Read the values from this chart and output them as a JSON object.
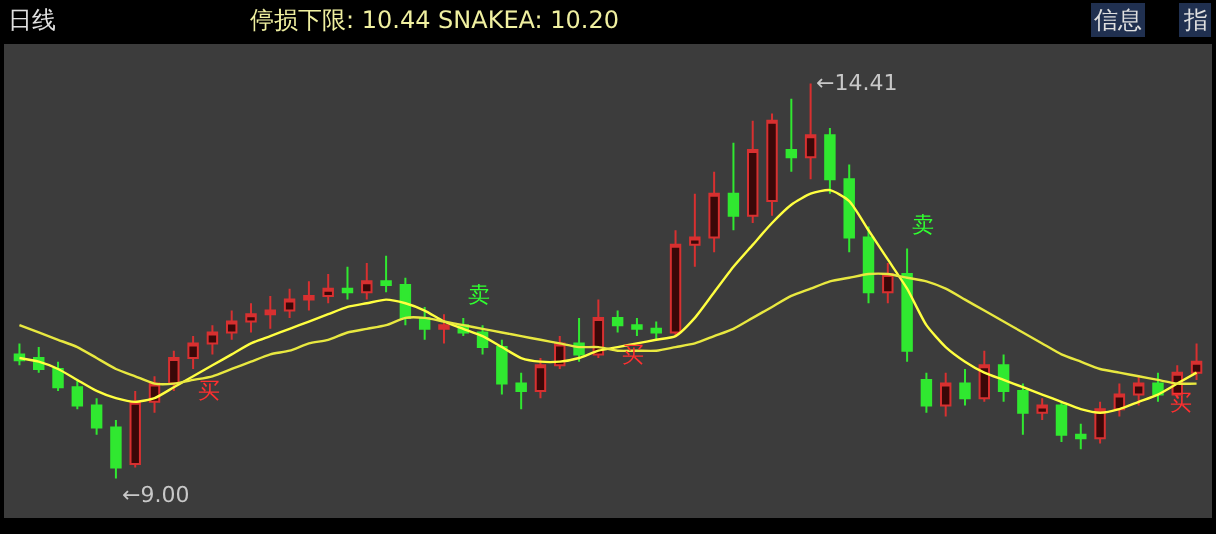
{
  "chart_data": {
    "type": "candlestick",
    "title": "日线",
    "subtitle": "停损下限: 10.44 SNAKEA: 10.20",
    "categories": [
      null,
      null,
      null,
      null,
      null,
      null,
      null,
      null,
      null,
      null,
      null,
      null,
      null,
      null,
      null,
      null,
      null,
      null,
      null,
      null,
      null,
      null,
      null,
      null,
      null,
      null,
      null,
      null,
      null,
      null,
      null,
      null,
      null,
      null,
      null,
      null,
      null,
      null,
      null,
      null,
      null,
      null,
      null,
      null,
      null,
      null,
      null,
      null,
      null,
      null,
      null,
      null,
      null,
      null,
      null,
      null,
      null,
      null,
      null,
      null,
      null,
      null
    ],
    "ohlc": [
      [
        10.7,
        10.85,
        10.55,
        10.62
      ],
      [
        10.65,
        10.8,
        10.45,
        10.5
      ],
      [
        10.5,
        10.6,
        10.2,
        10.25
      ],
      [
        10.25,
        10.35,
        9.95,
        10.0
      ],
      [
        10.0,
        10.1,
        9.6,
        9.7
      ],
      [
        9.7,
        9.8,
        9.0,
        9.15
      ],
      [
        9.2,
        10.2,
        9.15,
        10.05
      ],
      [
        10.05,
        10.4,
        9.9,
        10.3
      ],
      [
        10.3,
        10.75,
        10.2,
        10.65
      ],
      [
        10.65,
        10.95,
        10.5,
        10.85
      ],
      [
        10.85,
        11.1,
        10.7,
        11.0
      ],
      [
        11.0,
        11.3,
        10.9,
        11.15
      ],
      [
        11.15,
        11.4,
        11.0,
        11.25
      ],
      [
        11.25,
        11.5,
        11.05,
        11.3
      ],
      [
        11.3,
        11.6,
        11.2,
        11.45
      ],
      [
        11.45,
        11.7,
        11.3,
        11.5
      ],
      [
        11.5,
        11.8,
        11.4,
        11.6
      ],
      [
        11.6,
        11.9,
        11.45,
        11.55
      ],
      [
        11.55,
        11.95,
        11.45,
        11.7
      ],
      [
        11.7,
        12.05,
        11.55,
        11.65
      ],
      [
        11.65,
        11.75,
        11.1,
        11.2
      ],
      [
        11.2,
        11.35,
        10.9,
        11.05
      ],
      [
        11.05,
        11.25,
        10.85,
        11.1
      ],
      [
        11.1,
        11.2,
        10.95,
        11.0
      ],
      [
        11.0,
        11.1,
        10.7,
        10.8
      ],
      [
        10.8,
        10.9,
        10.15,
        10.3
      ],
      [
        10.3,
        10.45,
        9.95,
        10.2
      ],
      [
        10.2,
        10.65,
        10.1,
        10.55
      ],
      [
        10.55,
        10.95,
        10.5,
        10.85
      ],
      [
        10.85,
        11.2,
        10.6,
        10.7
      ],
      [
        10.7,
        11.45,
        10.65,
        11.2
      ],
      [
        11.2,
        11.3,
        11.0,
        11.1
      ],
      [
        11.1,
        11.2,
        10.95,
        11.05
      ],
      [
        11.05,
        11.15,
        10.9,
        11.0
      ],
      [
        11.0,
        12.4,
        10.95,
        12.2
      ],
      [
        12.2,
        12.9,
        11.9,
        12.3
      ],
      [
        12.3,
        13.2,
        12.1,
        12.9
      ],
      [
        12.9,
        13.6,
        12.4,
        12.6
      ],
      [
        12.6,
        13.9,
        12.5,
        13.5
      ],
      [
        12.8,
        14.0,
        12.6,
        13.9
      ],
      [
        13.5,
        14.2,
        13.2,
        13.4
      ],
      [
        13.4,
        14.41,
        13.1,
        13.7
      ],
      [
        13.7,
        13.8,
        12.9,
        13.1
      ],
      [
        13.1,
        13.3,
        12.1,
        12.3
      ],
      [
        12.3,
        12.45,
        11.4,
        11.55
      ],
      [
        11.55,
        11.95,
        11.4,
        11.8
      ],
      [
        11.8,
        12.15,
        10.6,
        10.75
      ],
      [
        10.35,
        10.45,
        9.9,
        10.0
      ],
      [
        10.0,
        10.45,
        9.85,
        10.3
      ],
      [
        10.3,
        10.5,
        10.0,
        10.1
      ],
      [
        10.1,
        10.75,
        10.05,
        10.55
      ],
      [
        10.55,
        10.7,
        10.05,
        10.2
      ],
      [
        10.2,
        10.3,
        9.6,
        9.9
      ],
      [
        9.9,
        10.1,
        9.8,
        10.0
      ],
      [
        10.0,
        10.05,
        9.5,
        9.6
      ],
      [
        9.6,
        9.75,
        9.4,
        9.55
      ],
      [
        9.55,
        10.05,
        9.48,
        9.95
      ],
      [
        9.95,
        10.3,
        9.85,
        10.15
      ],
      [
        10.15,
        10.4,
        10.0,
        10.3
      ],
      [
        10.3,
        10.45,
        10.05,
        10.15
      ],
      [
        10.15,
        10.55,
        10.1,
        10.45
      ],
      [
        10.45,
        10.85,
        10.35,
        10.6
      ]
    ],
    "series": [
      {
        "type": "line",
        "color": "#ffff40",
        "values": [
          10.65,
          10.6,
          10.5,
          10.35,
          10.2,
          10.1,
          10.05,
          10.1,
          10.25,
          10.4,
          10.55,
          10.7,
          10.85,
          10.95,
          11.05,
          11.15,
          11.25,
          11.35,
          11.4,
          11.45,
          11.4,
          11.3,
          11.15,
          11.05,
          10.95,
          10.8,
          10.65,
          10.6,
          10.6,
          10.65,
          10.75,
          10.8,
          10.85,
          10.9,
          10.95,
          11.2,
          11.55,
          11.9,
          12.2,
          12.5,
          12.75,
          12.9,
          12.95,
          12.8,
          12.4,
          12.0,
          11.6,
          11.1,
          10.8,
          10.6,
          10.45,
          10.35,
          10.25,
          10.15,
          10.05,
          9.95,
          9.9,
          9.95,
          10.05,
          10.15,
          10.3,
          10.45
        ]
      },
      {
        "type": "line",
        "color": "#e8e840",
        "values": [
          11.1,
          11.0,
          10.9,
          10.8,
          10.65,
          10.5,
          10.4,
          10.3,
          10.3,
          10.35,
          10.4,
          10.5,
          10.6,
          10.7,
          10.75,
          10.85,
          10.9,
          11.0,
          11.05,
          11.1,
          11.2,
          11.2,
          11.15,
          11.1,
          11.05,
          11.0,
          10.95,
          10.9,
          10.85,
          10.8,
          10.8,
          10.75,
          10.75,
          10.75,
          10.8,
          10.85,
          10.95,
          11.05,
          11.2,
          11.35,
          11.5,
          11.6,
          11.7,
          11.75,
          11.8,
          11.8,
          11.75,
          11.7,
          11.6,
          11.45,
          11.3,
          11.15,
          11.0,
          10.85,
          10.7,
          10.6,
          10.5,
          10.45,
          10.4,
          10.35,
          10.3,
          10.3
        ]
      }
    ],
    "annotations": [
      "←14.41",
      "←9.00",
      "买",
      "卖",
      "买",
      "卖",
      "买",
      "指",
      "信息"
    ]
  }
}
